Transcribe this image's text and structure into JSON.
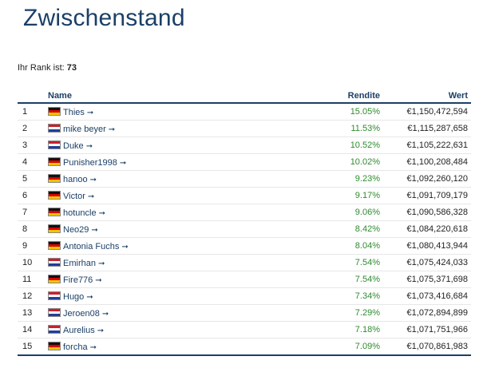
{
  "page": {
    "title": "Zwischenstand",
    "rank_label": "Ihr Rank ist:",
    "rank_value": "73"
  },
  "table": {
    "headers": {
      "name": "Name",
      "rendite": "Rendite",
      "wert": "Wert"
    },
    "arrow_icon": "arrow-right-icon",
    "colors": {
      "header": "#1b3f66",
      "return": "#2e8b2e"
    },
    "rows": [
      {
        "rank": "1",
        "flag": "de",
        "name": "Thies",
        "rendite": "15.05%",
        "wert": "€1,150,472,594"
      },
      {
        "rank": "2",
        "flag": "nl",
        "name": "mike beyer",
        "rendite": "11.53%",
        "wert": "€1,115,287,658"
      },
      {
        "rank": "3",
        "flag": "nl",
        "name": "Duke",
        "rendite": "10.52%",
        "wert": "€1,105,222,631"
      },
      {
        "rank": "4",
        "flag": "de",
        "name": "Punisher1998",
        "rendite": "10.02%",
        "wert": "€1,100,208,484"
      },
      {
        "rank": "5",
        "flag": "de",
        "name": "hanoo",
        "rendite": "9.23%",
        "wert": "€1,092,260,120"
      },
      {
        "rank": "6",
        "flag": "de",
        "name": "Victor",
        "rendite": "9.17%",
        "wert": "€1,091,709,179"
      },
      {
        "rank": "7",
        "flag": "de",
        "name": "hotuncle",
        "rendite": "9.06%",
        "wert": "€1,090,586,328"
      },
      {
        "rank": "8",
        "flag": "de",
        "name": "Neo29",
        "rendite": "8.42%",
        "wert": "€1,084,220,618"
      },
      {
        "rank": "9",
        "flag": "de",
        "name": "Antonia Fuchs",
        "rendite": "8.04%",
        "wert": "€1,080,413,944"
      },
      {
        "rank": "10",
        "flag": "nl",
        "name": "Emirhan",
        "rendite": "7.54%",
        "wert": "€1,075,424,033"
      },
      {
        "rank": "11",
        "flag": "de",
        "name": "Fire776",
        "rendite": "7.54%",
        "wert": "€1,075,371,698"
      },
      {
        "rank": "12",
        "flag": "nl",
        "name": "Hugo",
        "rendite": "7.34%",
        "wert": "€1,073,416,684"
      },
      {
        "rank": "13",
        "flag": "nl",
        "name": "Jeroen08",
        "rendite": "7.29%",
        "wert": "€1,072,894,899"
      },
      {
        "rank": "14",
        "flag": "nl",
        "name": "Aurelius",
        "rendite": "7.18%",
        "wert": "€1,071,751,966"
      },
      {
        "rank": "15",
        "flag": "de",
        "name": "forcha",
        "rendite": "7.09%",
        "wert": "€1,070,861,983"
      }
    ]
  }
}
